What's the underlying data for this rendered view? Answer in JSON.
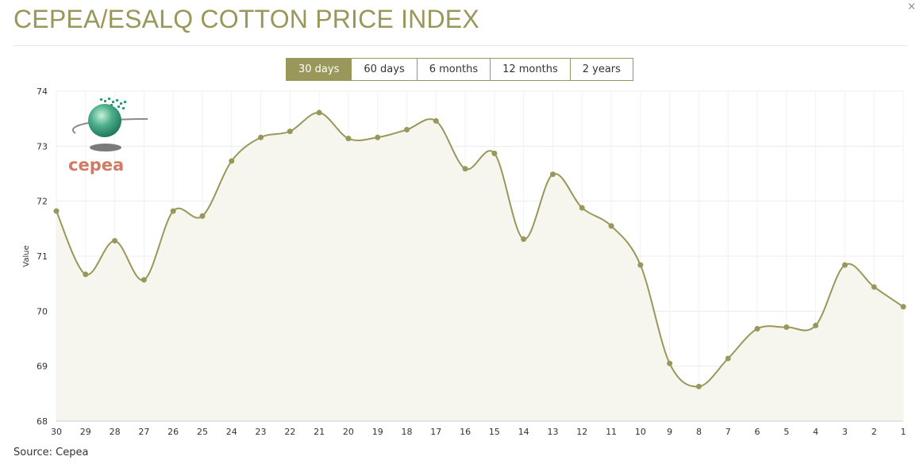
{
  "header": {
    "title": "CEPEA/ESALQ COTTON PRICE INDEX",
    "close_symbol": "×"
  },
  "tabs": [
    {
      "label": "30 days",
      "active": true
    },
    {
      "label": "60 days",
      "active": false
    },
    {
      "label": "6 months",
      "active": false
    },
    {
      "label": "12 months",
      "active": false
    },
    {
      "label": "2 years",
      "active": false
    }
  ],
  "logo": {
    "text": "cepea",
    "icon": "globe-logo-icon"
  },
  "footer": {
    "source": "Source: Cepea"
  },
  "colors": {
    "accent": "#99975a",
    "line": "#99975a",
    "area": "#f6f6ef",
    "logo_text": "#d17a66",
    "globe": "#2f9e7a"
  },
  "chart_data": {
    "type": "area",
    "title": "",
    "xlabel": "",
    "ylabel": "Value",
    "ylim": [
      68,
      74
    ],
    "yticks": [
      68,
      69,
      70,
      71,
      72,
      73,
      74
    ],
    "grid": true,
    "legend": "none",
    "x": [
      "30",
      "29",
      "28",
      "27",
      "26",
      "25",
      "24",
      "23",
      "22",
      "21",
      "20",
      "19",
      "18",
      "17",
      "16",
      "15",
      "14",
      "13",
      "12",
      "11",
      "10",
      "9",
      "8",
      "7",
      "6",
      "5",
      "4",
      "3",
      "2",
      "1"
    ],
    "values": [
      71.82,
      70.67,
      71.28,
      70.57,
      71.82,
      71.73,
      72.73,
      73.16,
      73.27,
      73.61,
      73.14,
      73.16,
      73.3,
      73.46,
      72.59,
      72.87,
      71.31,
      72.49,
      71.88,
      71.55,
      70.84,
      69.05,
      68.63,
      69.14,
      69.68,
      69.71,
      69.74,
      70.84,
      70.44,
      70.08
    ]
  }
}
